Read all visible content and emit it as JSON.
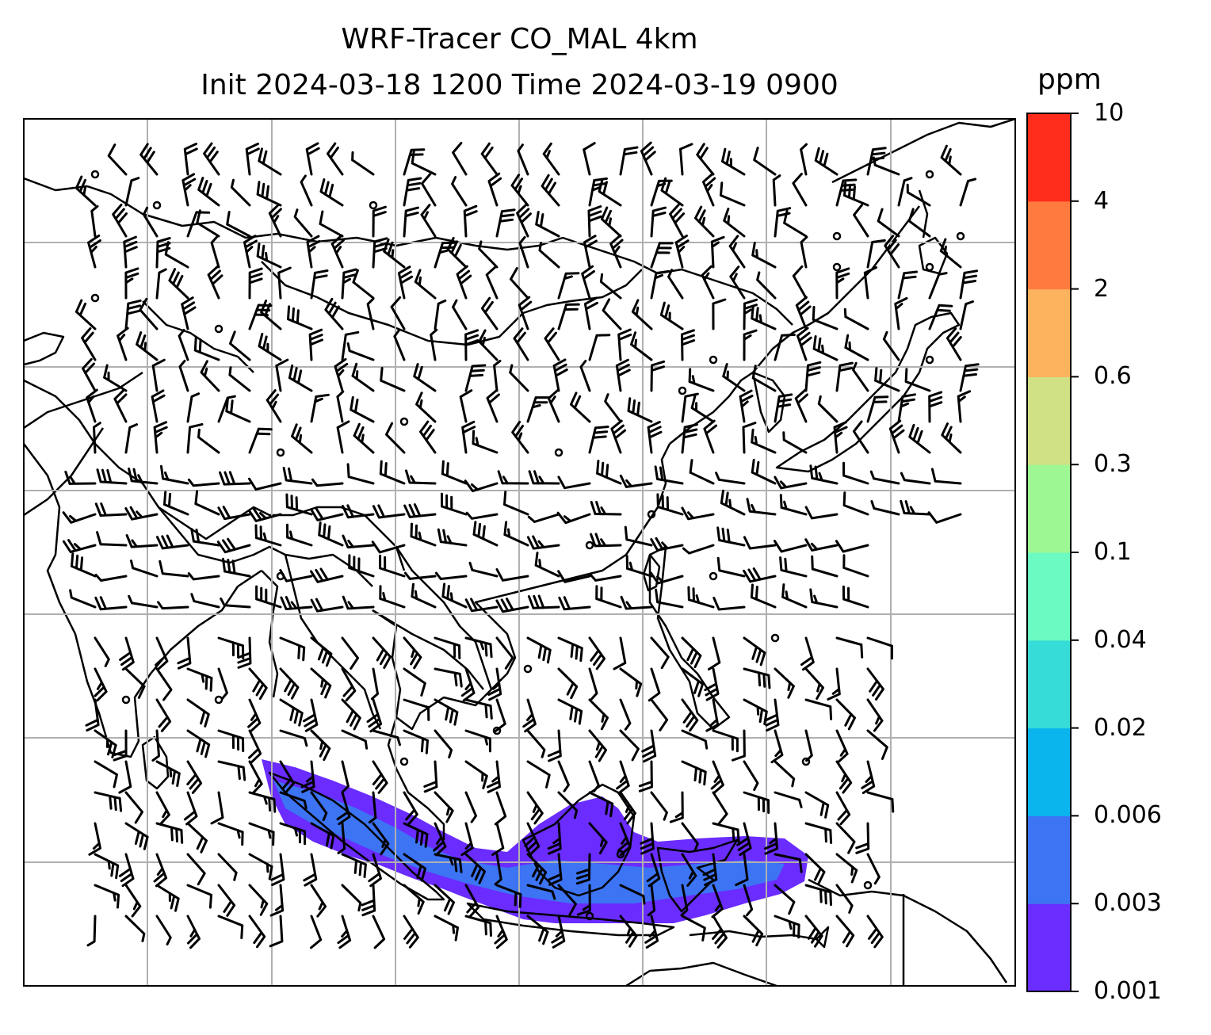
{
  "title": {
    "line1": "WRF-Tracer CO_MAL 4km",
    "line2": "Init 2024-03-18 1200 Time 2024-03-19 0900"
  },
  "colorbar": {
    "unit": "ppm",
    "levels": [
      "0.001",
      "0.003",
      "0.006",
      "0.02",
      "0.04",
      "0.1",
      "0.3",
      "0.6",
      "2",
      "4",
      "10"
    ],
    "colors": [
      "#6a2cff",
      "#3c74f4",
      "#0ab4ec",
      "#36dcd7",
      "#6bfac2",
      "#9df894",
      "#cfe085",
      "#fdb25e",
      "#ff7a3e",
      "#ff2c1c"
    ]
  },
  "map": {
    "tracer_color": "#6a2cff",
    "tracer_core_color": "#3c74f4",
    "grid_color": "#b0b0b0",
    "coastline_color": "#000000"
  }
}
